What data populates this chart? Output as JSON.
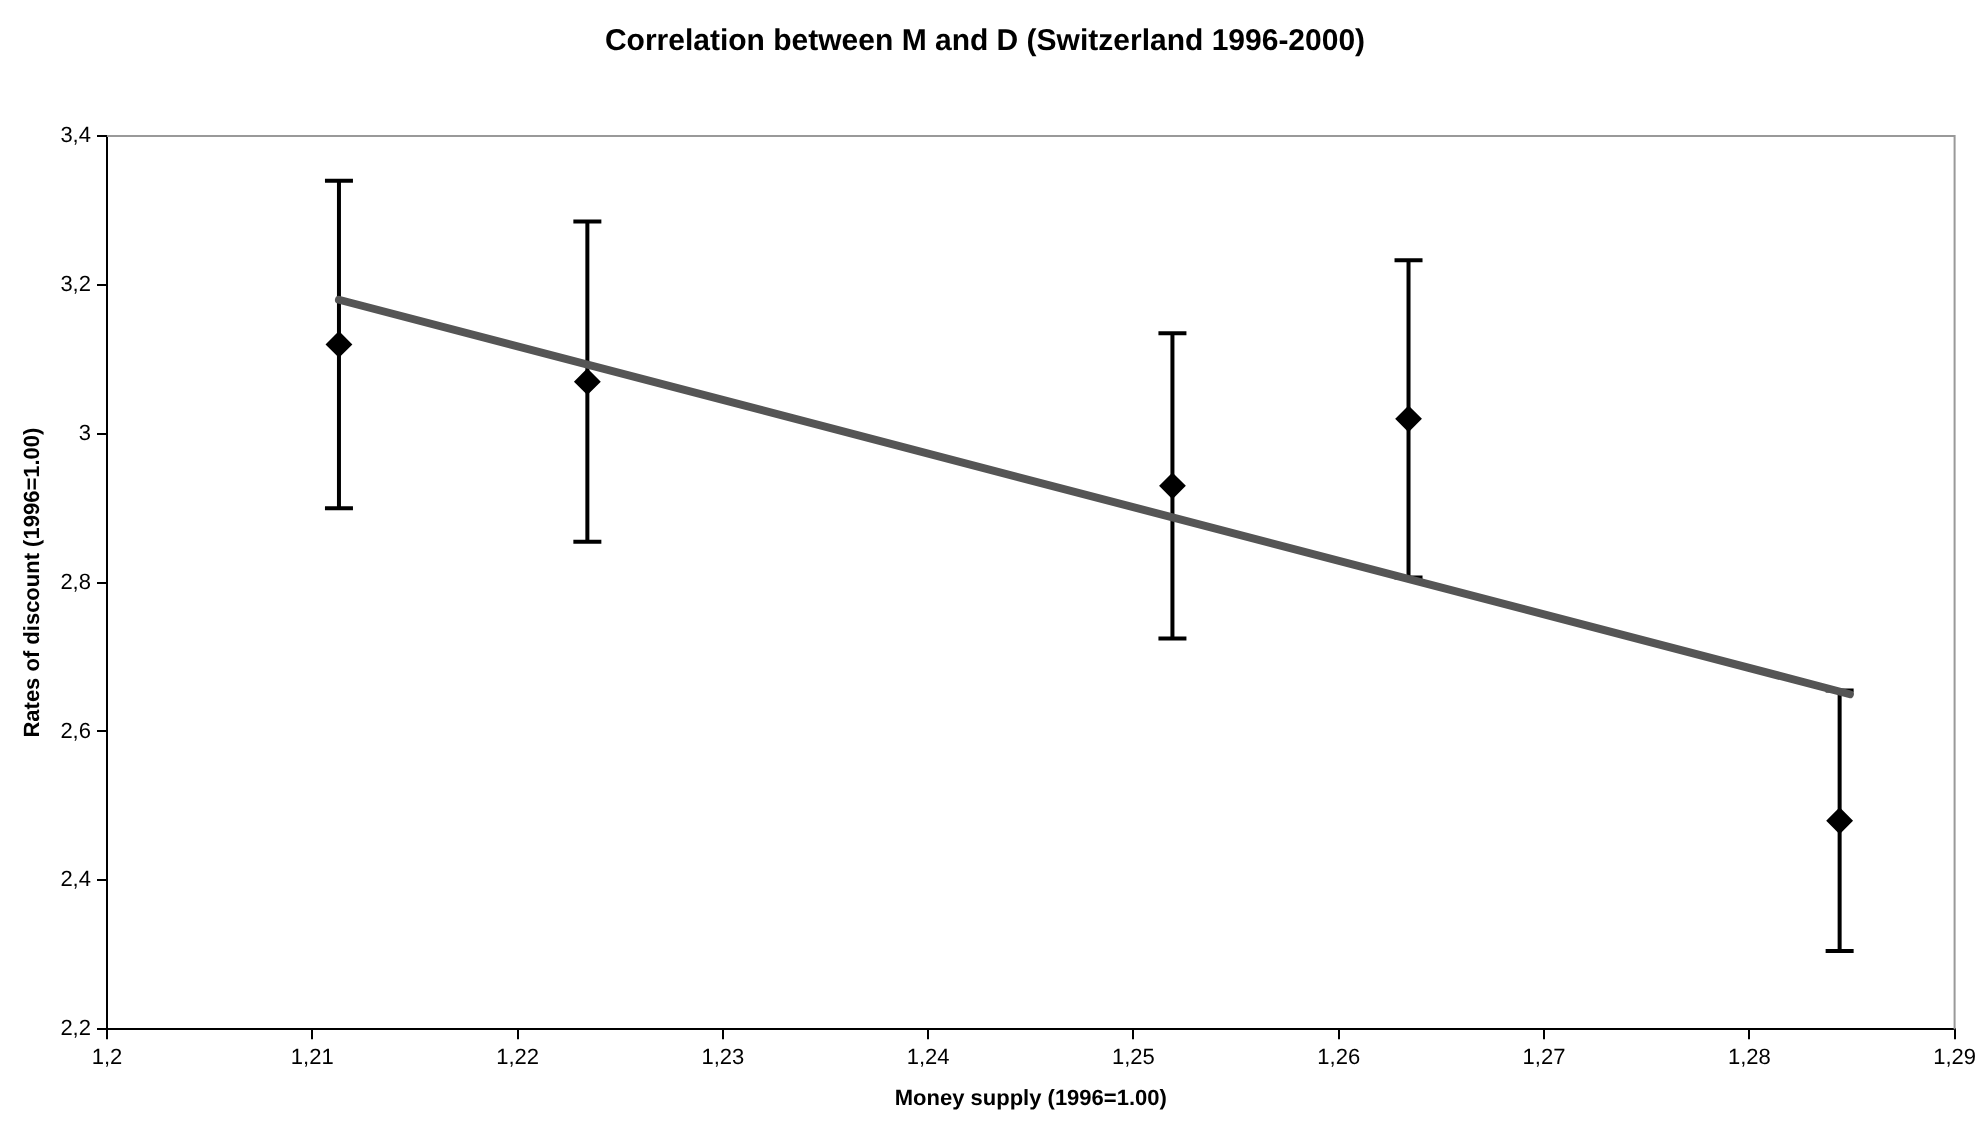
{
  "chart_data": {
    "type": "scatter",
    "title": "Correlation between M and D (Switzerland 1996-2000)",
    "xlabel": "Money supply (1996=1.00)",
    "ylabel": "Rates of discount (1996=1.00)",
    "series": [
      {
        "color": "#000000",
        "marker": "diamond",
        "x": [
          1.2113,
          1.2234,
          1.2519,
          1.2634,
          1.2844
        ],
        "values": [
          3.12,
          3.07,
          2.93,
          3.02,
          2.48
        ],
        "errors": [
          0.22,
          0.215,
          0.205,
          0.213,
          0.175
        ]
      },
      {
        "type": "line",
        "color": "#555555",
        "marker": "none",
        "x": [
          1.2113,
          1.2849
        ],
        "values": [
          3.18,
          2.65
        ]
      }
    ],
    "xlim": [
      1.2,
      1.29
    ],
    "xticks": [
      {
        "value": 1.2,
        "label": "1,2"
      },
      {
        "value": 1.21,
        "label": "1,21"
      },
      {
        "value": 1.22,
        "label": "1,22"
      },
      {
        "value": 1.23,
        "label": "1,23"
      },
      {
        "value": 1.24,
        "label": "1,24"
      },
      {
        "value": 1.25,
        "label": "1,25"
      },
      {
        "value": 1.26,
        "label": "1,26"
      },
      {
        "value": 1.27,
        "label": "1,27"
      },
      {
        "value": 1.28,
        "label": "1,28"
      },
      {
        "value": 1.29,
        "label": "1,29"
      }
    ],
    "ylim": [
      2.2,
      3.4
    ],
    "yticks": [
      {
        "value": 2.2,
        "label": "2,2"
      },
      {
        "value": 2.4,
        "label": "2,4"
      },
      {
        "value": 2.6,
        "label": "2,6"
      },
      {
        "value": 2.8,
        "label": "2,8"
      },
      3,
      {
        "value": 3.2,
        "label": "3,2"
      },
      {
        "value": 3.4,
        "label": "3,4"
      }
    ],
    "grid": false,
    "legend": false
  }
}
